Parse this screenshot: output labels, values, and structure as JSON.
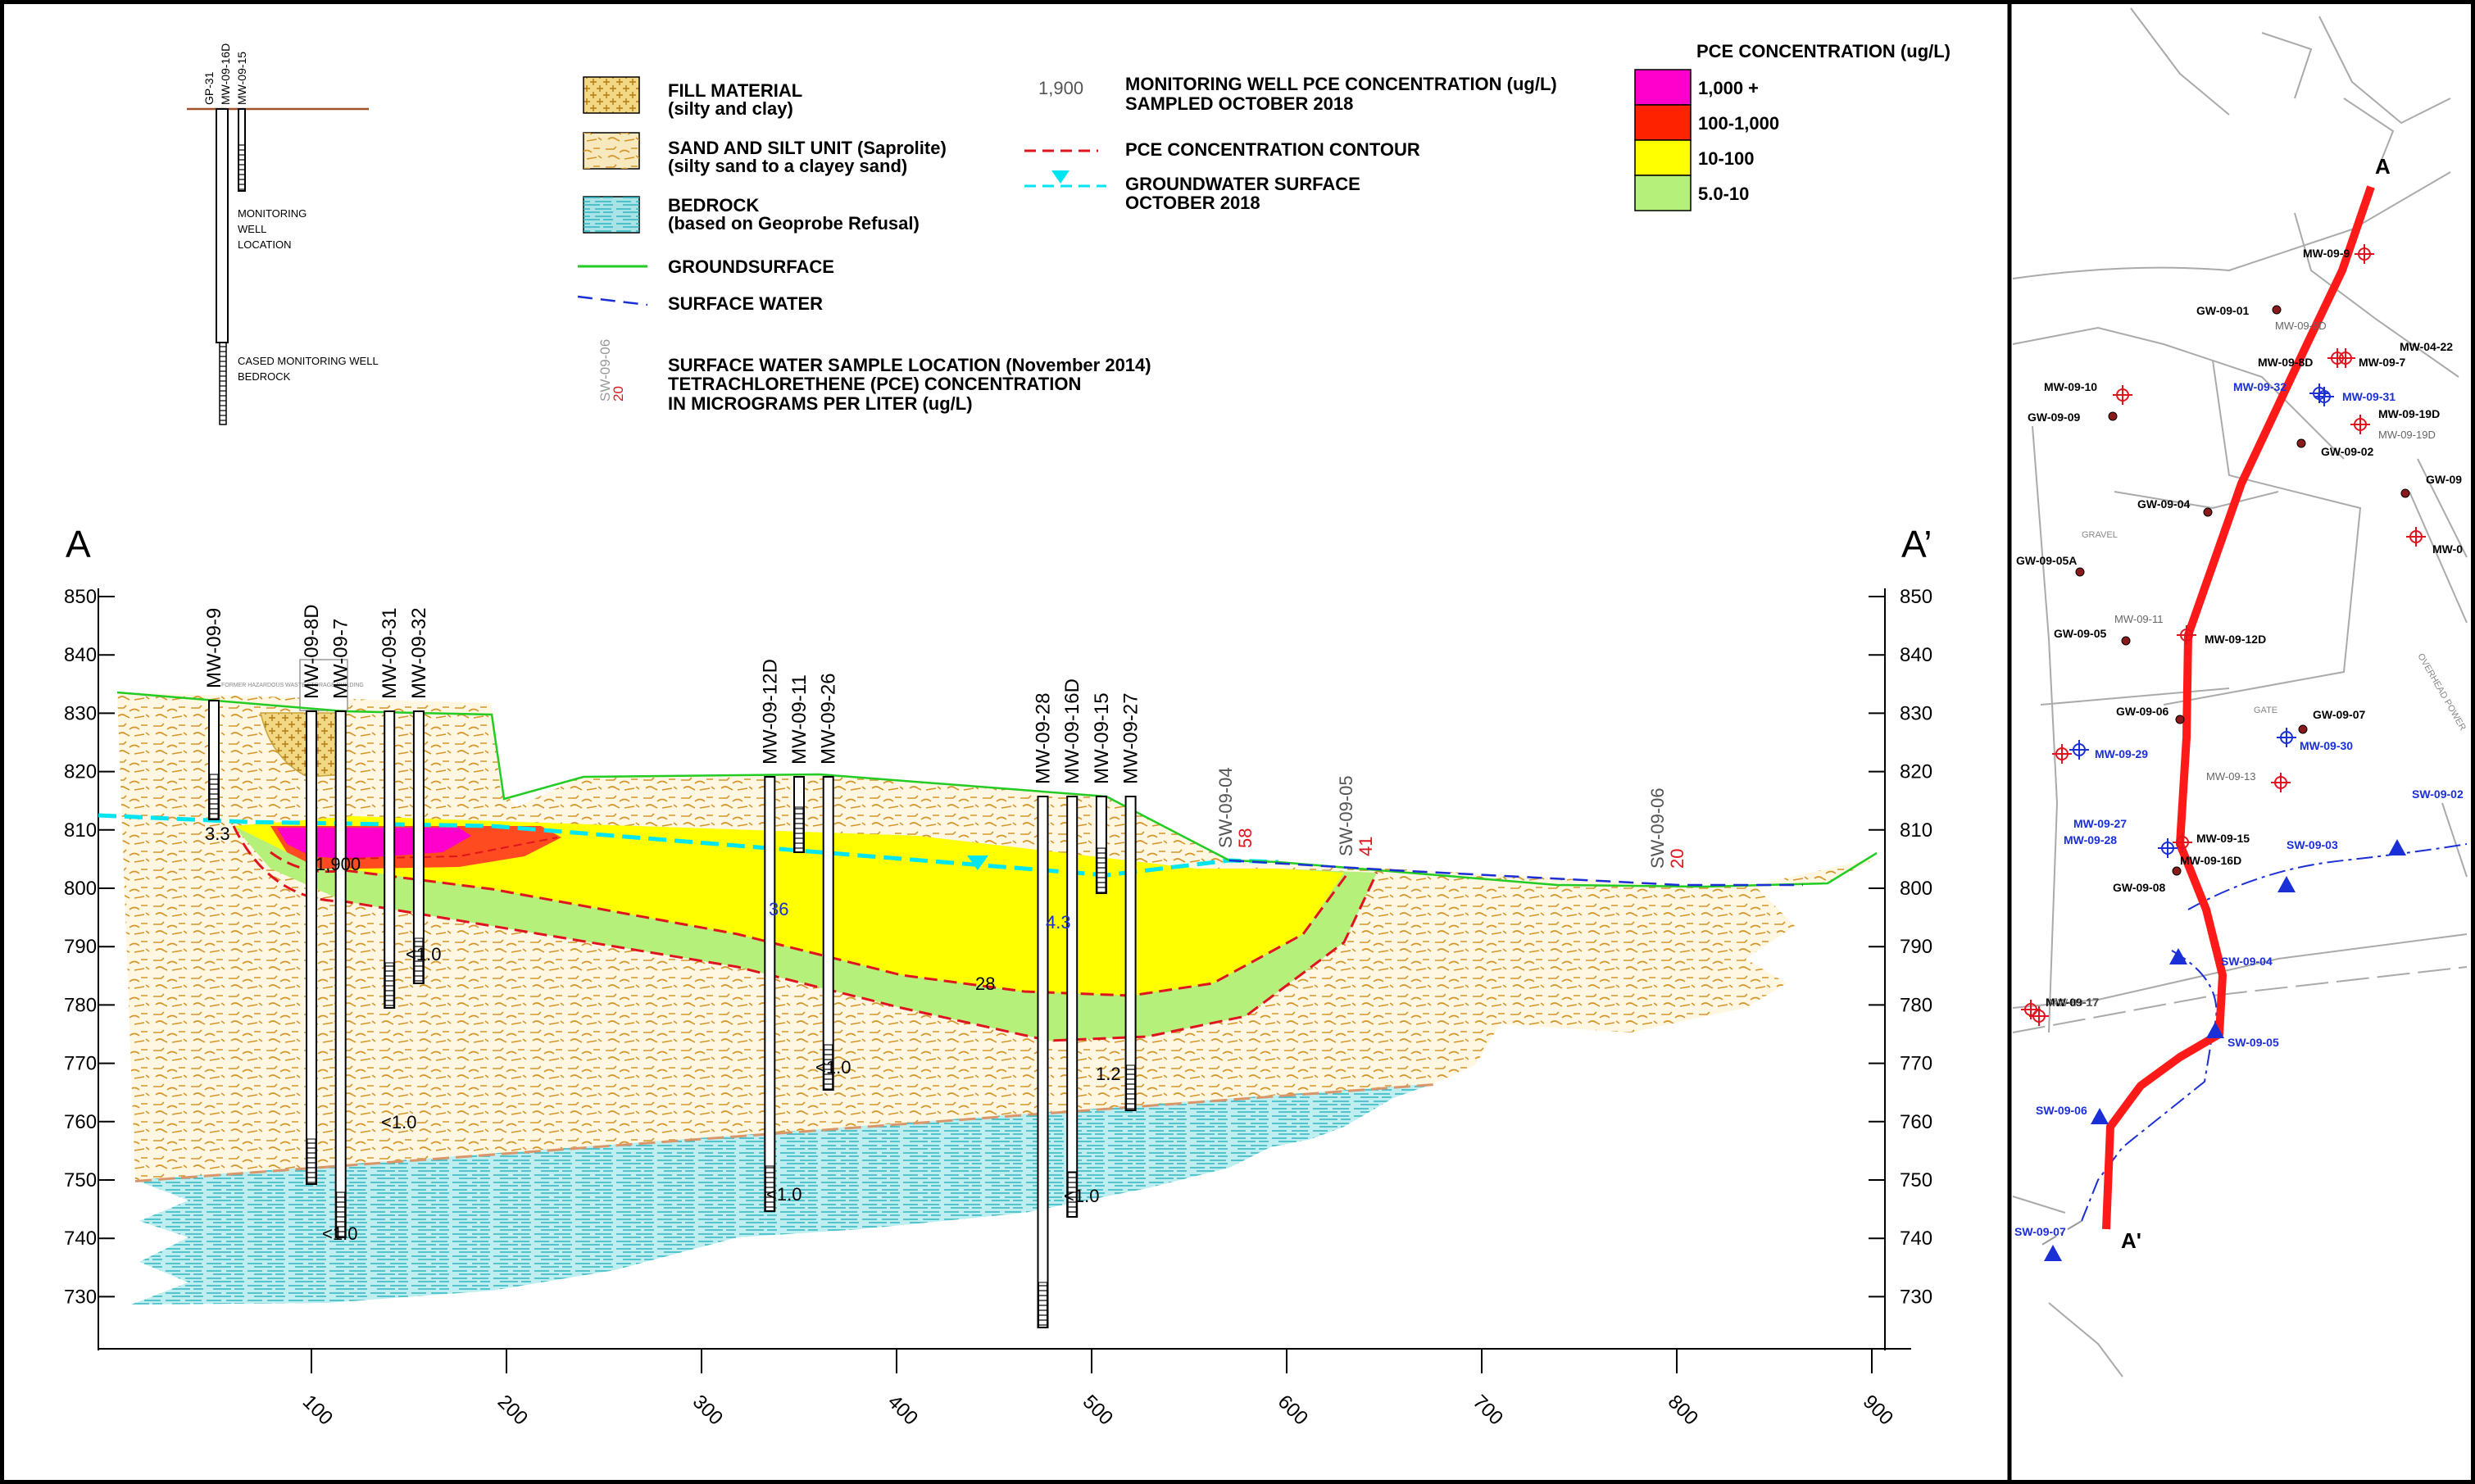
{
  "legend": {
    "symbol_well_labels": [
      "GP-31",
      "MW-09-16D",
      "MW-09-15"
    ],
    "symbol_monitoring_well_location": [
      "MONITORING",
      "WELL",
      "LOCATION"
    ],
    "symbol_cased_well": [
      "CASED MONITORING WELL",
      "BEDROCK"
    ],
    "fill_material": [
      "FILL MATERIAL",
      "(silty and clay)"
    ],
    "sand_silt": [
      "SAND AND SILT UNIT (Saprolite)",
      "(silty sand to a clayey sand)"
    ],
    "bedrock": [
      "BEDROCK",
      "(based on Geoprobe Refusal)"
    ],
    "groundsurface": "GROUNDSURFACE",
    "surface_water": "SURFACE WATER",
    "sw_sample_symbol": "SW-09-06",
    "sw_sample_value": "20",
    "sw_sample_text": [
      "SURFACE WATER SAMPLE LOCATION (November 2014)",
      "TETRACHLORETHENE (PCE) CONCENTRATION",
      "IN MICROGRAMS PER LITER (ug/L)"
    ],
    "mw_example_value": "1,900",
    "mw_text": [
      "MONITORING WELL  PCE CONCENTRATION (ug/L)",
      "SAMPLED OCTOBER 2018"
    ],
    "contour_text": "PCE CONCENTRATION CONTOUR",
    "gw_text": [
      "GROUNDWATER SURFACE",
      "OCTOBER 2018"
    ],
    "pce_title": "PCE CONCENTRATION (ug/L)",
    "pce_classes": [
      {
        "label": "1,000 +",
        "color": "#ff00cc"
      },
      {
        "label": "100-1,000",
        "color": "#ff2200"
      },
      {
        "label": "10-100",
        "color": "#ffff00"
      },
      {
        "label": "5.0-10",
        "color": "#b5f07a"
      }
    ]
  },
  "section": {
    "label_left": "A",
    "label_right": "A’",
    "y_ticks": [
      "850",
      "840",
      "830",
      "820",
      "810",
      "800",
      "790",
      "780",
      "770",
      "760",
      "750",
      "740",
      "730"
    ],
    "x_ticks": [
      "100",
      "200",
      "300",
      "400",
      "500",
      "600",
      "700",
      "800",
      "900"
    ],
    "wells": [
      {
        "name": "MW-09-9",
        "x": 50
      },
      {
        "name": "MW-09-8D",
        "x": 100
      },
      {
        "name": "MW-09-7",
        "x": 115
      },
      {
        "name": "MW-09-31",
        "x": 140
      },
      {
        "name": "MW-09-32",
        "x": 155
      },
      {
        "name": "MW-09-12D",
        "x": 335
      },
      {
        "name": "MW-09-11",
        "x": 350
      },
      {
        "name": "MW-09-26",
        "x": 365
      },
      {
        "name": "MW-09-28",
        "x": 475
      },
      {
        "name": "MW-09-16D",
        "x": 490
      },
      {
        "name": "MW-09-15",
        "x": 505
      },
      {
        "name": "MW-09-27",
        "x": 520
      }
    ],
    "sw_samples": [
      {
        "name": "SW-09-04",
        "value": "58"
      },
      {
        "name": "SW-09-05",
        "value": "41"
      },
      {
        "name": "SW-09-06",
        "value": "20"
      }
    ],
    "concentrations": [
      "3.3",
      "1,900",
      "<1.0",
      "36",
      "4.3",
      "28",
      "<1.0",
      "1.2",
      "<1.0",
      "<1.0",
      "<1.0",
      "<1.0"
    ],
    "building_note": "FORMER HAZARDOUS WASTE STORAGE BUILDING"
  },
  "map": {
    "section_start": "A",
    "section_end": "A'",
    "wells_red": [
      "MW-09-9",
      "MW-09-8D",
      "MW-09-7",
      "MW-04-22",
      "MW-09-10",
      "MW-09-19D",
      "MW-09-12D",
      "MW-09-15",
      "MW-09-16D",
      "MW-09-17",
      "MW-0"
    ],
    "wells_blue": [
      "MW-09-32",
      "MW-09-31",
      "MW-09-29",
      "MW-09-30",
      "MW-09-27",
      "MW-09-28"
    ],
    "wells_grey": [
      "MW-09-8D",
      "MW-09-19D",
      "MW-09-11",
      "MW-09-13",
      "MW-09-17"
    ],
    "gw_points": [
      "GW-09-01",
      "GW-09-09",
      "GW-09-02",
      "GW-09-04",
      "GW-09-05A",
      "GW-09-05",
      "GW-09-06",
      "GW-09-07",
      "GW-09-08",
      "GW-09"
    ],
    "sw_points": [
      "SW-09-02",
      "SW-09-03",
      "SW-09-04",
      "SW-09-05",
      "SW-09-06",
      "SW-09-07"
    ],
    "street_labels": [
      "GRAVEL",
      "GATE",
      "OVERHEAD POWER"
    ]
  },
  "colors": {
    "pink": "#ff00cc",
    "red": "#ff2200",
    "yellow": "#ffff00",
    "green": "#b5f07a",
    "sand": "#d9a441",
    "fill": "#e8c56a",
    "bedrock": "#7fd7d9",
    "ground": "#22cc22",
    "gw": "#00e5f0",
    "surfacewater": "#1a2fd6",
    "contour": "#e0141e",
    "section_line": "#ff1a1a"
  }
}
